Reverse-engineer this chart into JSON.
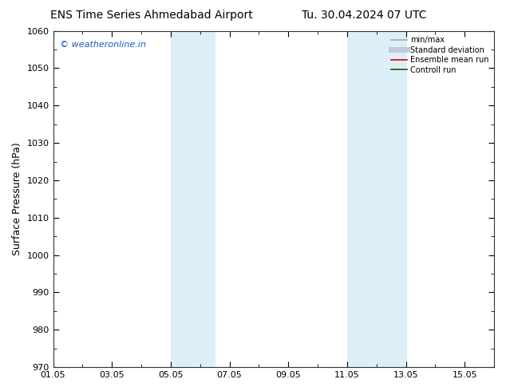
{
  "title_left": "ENS Time Series Ahmedabad Airport",
  "title_right": "Tu. 30.04.2024 07 UTC",
  "ylabel": "Surface Pressure (hPa)",
  "ylim": [
    970,
    1060
  ],
  "yticks": [
    970,
    980,
    990,
    1000,
    1010,
    1020,
    1030,
    1040,
    1050,
    1060
  ],
  "xlim": [
    0,
    15
  ],
  "xtick_labels": [
    "01.05",
    "03.05",
    "05.05",
    "07.05",
    "09.05",
    "11.05",
    "13.05",
    "15.05"
  ],
  "xtick_positions": [
    0,
    2,
    4,
    6,
    8,
    10,
    12,
    14
  ],
  "shaded_bands": [
    {
      "x_start": 4.0,
      "x_end": 5.5
    },
    {
      "x_start": 10.0,
      "x_end": 12.0
    }
  ],
  "shaded_color": "#ddeef8",
  "watermark": "© weatheronline.in",
  "watermark_color": "#1a56c4",
  "legend_entries": [
    {
      "label": "min/max",
      "color": "#aaaaaa",
      "lw": 1.2,
      "style": "solid"
    },
    {
      "label": "Standard deviation",
      "color": "#bbccdd",
      "lw": 5,
      "style": "solid"
    },
    {
      "label": "Ensemble mean run",
      "color": "#dd0000",
      "lw": 1.2,
      "style": "solid"
    },
    {
      "label": "Controll run",
      "color": "#006600",
      "lw": 1.2,
      "style": "solid"
    }
  ],
  "bg_color": "#ffffff",
  "spine_color": "#333333",
  "title_fontsize": 10,
  "tick_fontsize": 8,
  "ylabel_fontsize": 9,
  "watermark_fontsize": 8
}
